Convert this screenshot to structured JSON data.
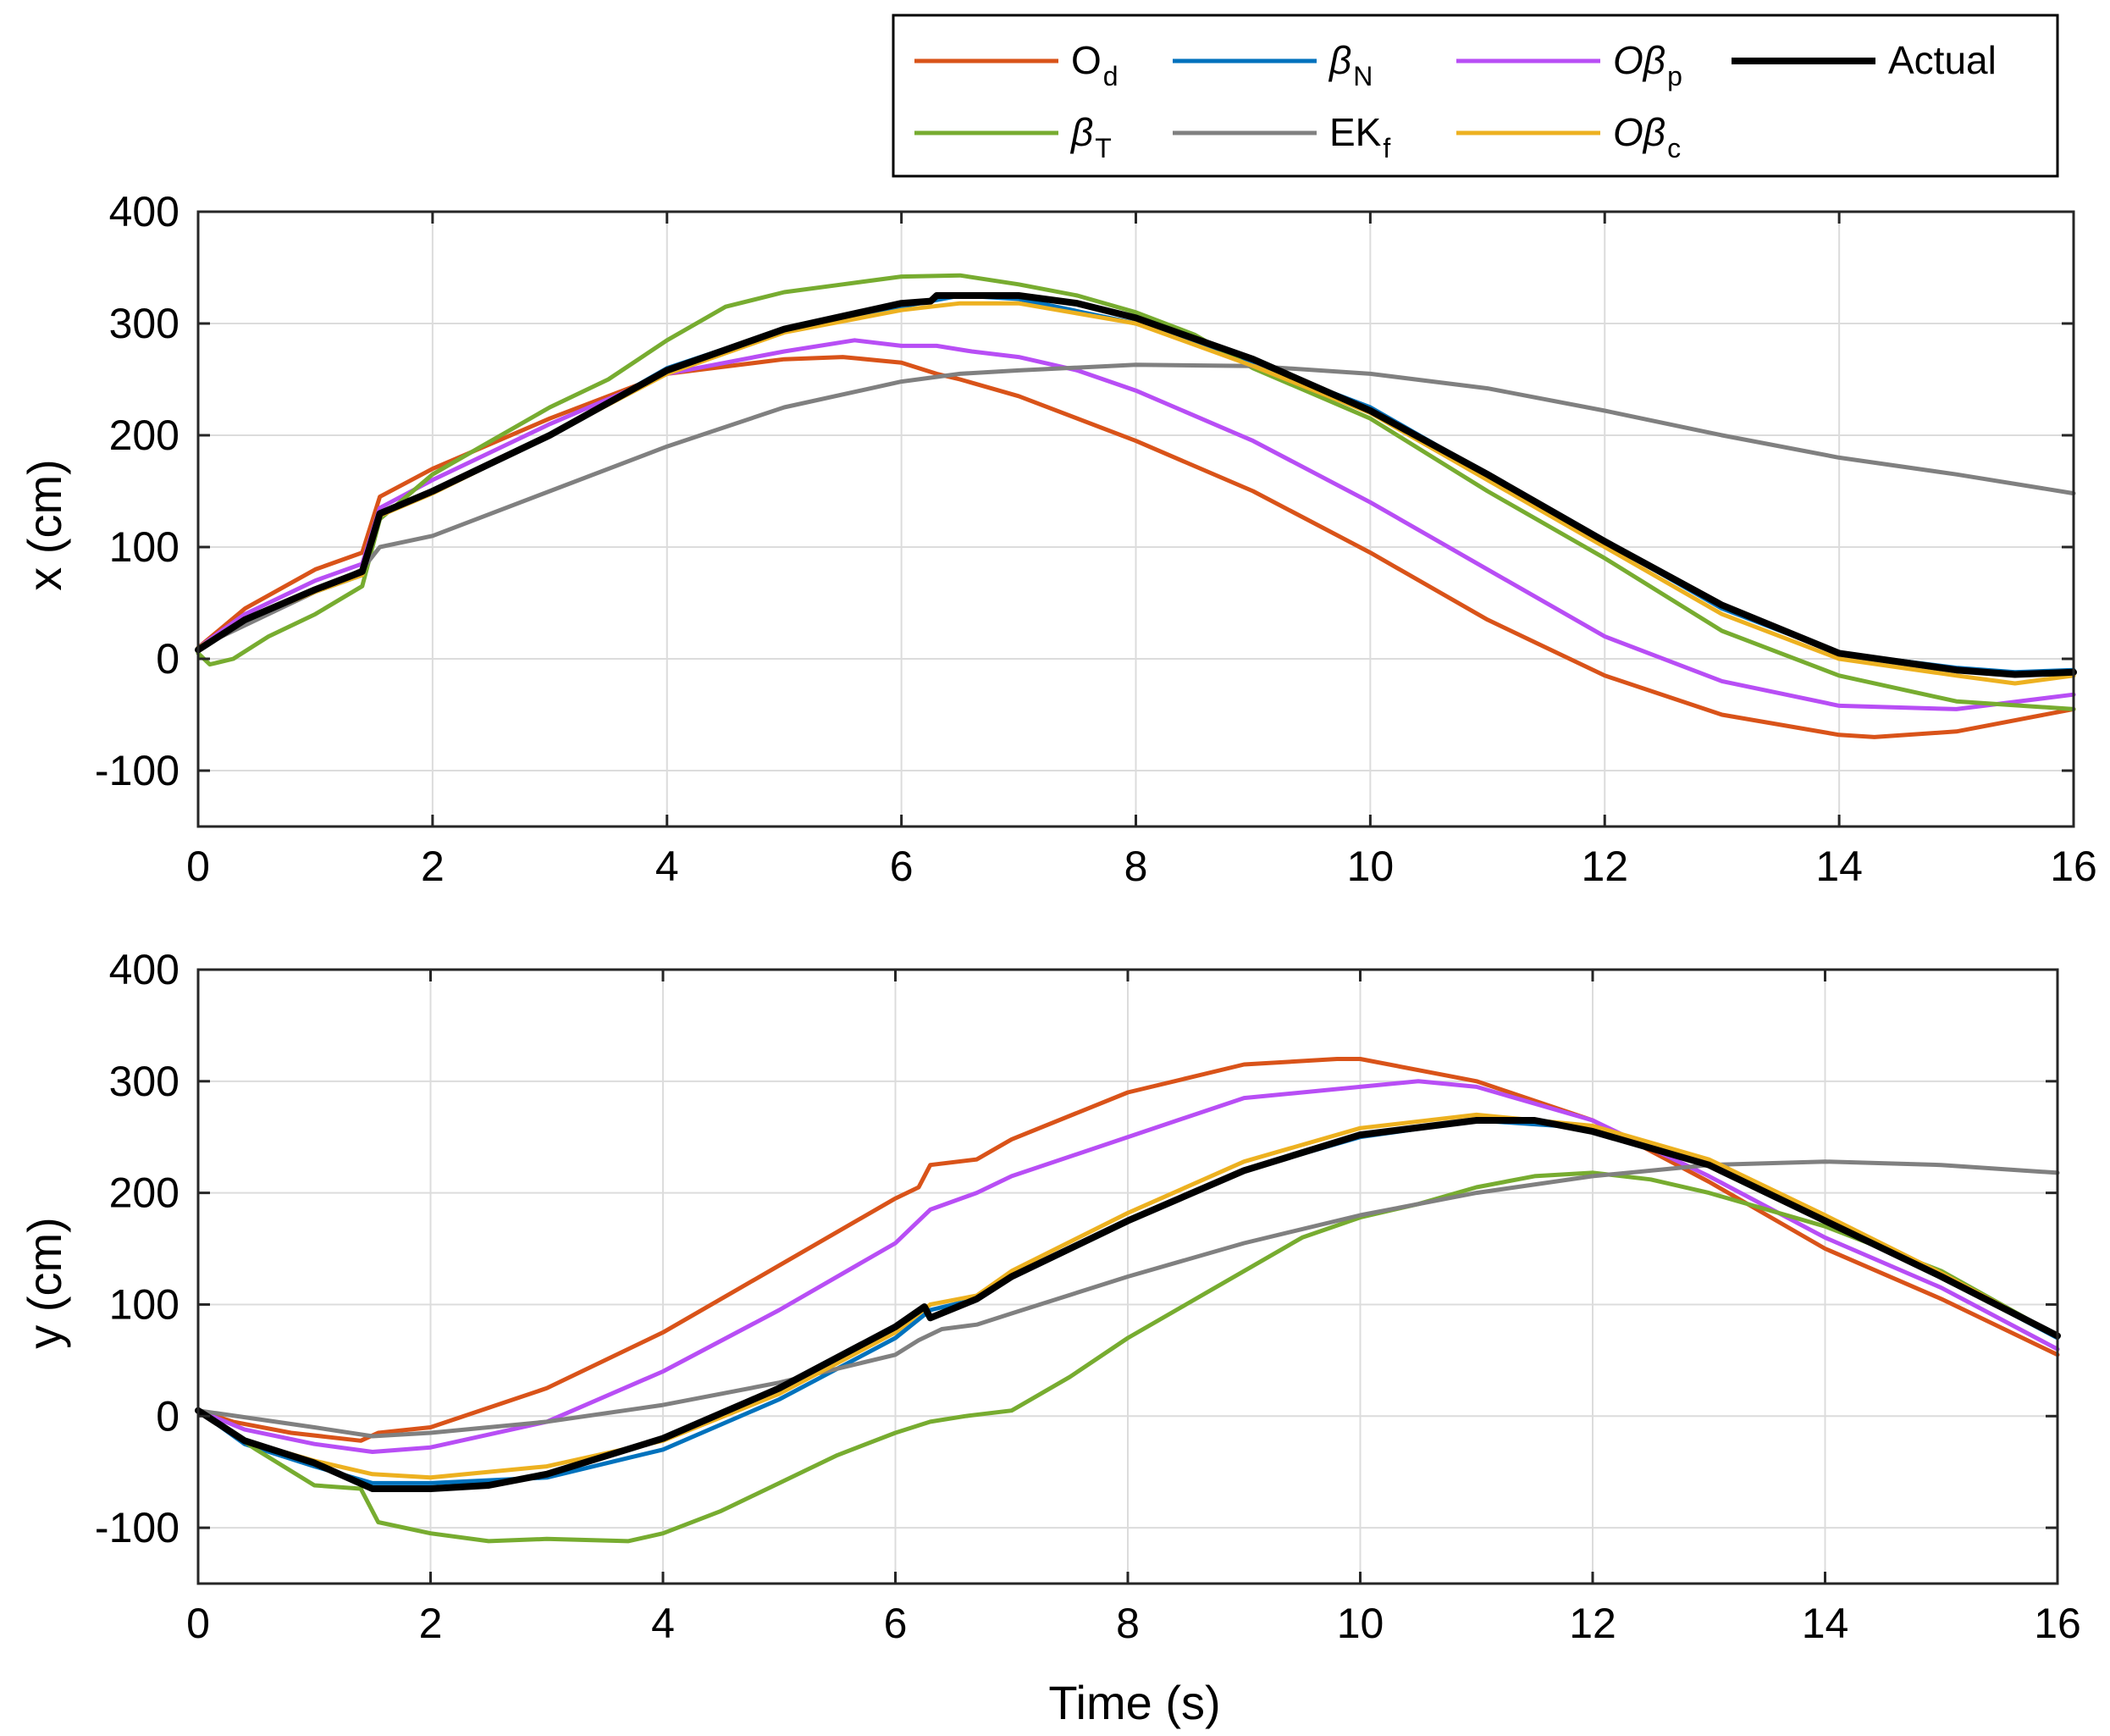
{
  "legend": {
    "entries": [
      {
        "id": "Od",
        "base": "O",
        "sub": "d",
        "color": "#D95319"
      },
      {
        "id": "betaN",
        "base": "β",
        "sub": "N",
        "color": "#0072BD"
      },
      {
        "id": "Obetap",
        "base": "Oβ",
        "sub": "p",
        "color": "#B84EF5"
      },
      {
        "id": "Actual",
        "base": "Actual",
        "sub": "",
        "color": "#000000"
      },
      {
        "id": "betaT",
        "base": "β",
        "sub": "T",
        "color": "#77AC30"
      },
      {
        "id": "EKf",
        "base": "EK",
        "sub": "f",
        "color": "#808080"
      },
      {
        "id": "Obetac",
        "base": "Oβ",
        "sub": "c",
        "color": "#EDB120"
      }
    ]
  },
  "chart_data": [
    {
      "type": "line",
      "title": "",
      "xlabel": "",
      "ylabel": "x (cm)",
      "xlim": [
        0,
        16
      ],
      "ylim": [
        -150,
        400
      ],
      "xticks": [
        0,
        2,
        4,
        6,
        8,
        10,
        12,
        14,
        16
      ],
      "yticks": [
        -100,
        0,
        100,
        200,
        300,
        400
      ],
      "grid": true,
      "legend_position": "top-right",
      "series": [
        {
          "name": "Od",
          "x": [
            0,
            0.4,
            1,
            1.4,
            1.55,
            2,
            3,
            4,
            5,
            5.5,
            6,
            6.3,
            6.5,
            7,
            8,
            9,
            10,
            11,
            12,
            13,
            14,
            14.3,
            15,
            16
          ],
          "y": [
            10,
            45,
            80,
            95,
            145,
            170,
            215,
            255,
            268,
            270,
            265,
            255,
            250,
            235,
            195,
            150,
            95,
            35,
            -15,
            -50,
            -68,
            -70,
            -65,
            -45
          ]
        },
        {
          "name": "betaN",
          "x": [
            0,
            0.4,
            1,
            1.4,
            1.55,
            2,
            3,
            4,
            5,
            6,
            6.5,
            7,
            8,
            9,
            10,
            11,
            12,
            13,
            14,
            15,
            15.5,
            16
          ],
          "y": [
            10,
            35,
            60,
            75,
            130,
            150,
            200,
            260,
            295,
            315,
            325,
            322,
            300,
            265,
            225,
            165,
            105,
            45,
            5,
            -8,
            -12,
            -10
          ]
        },
        {
          "name": "Obetap",
          "x": [
            0,
            0.4,
            1,
            1.4,
            1.55,
            2,
            3,
            4,
            5,
            5.6,
            6,
            6.3,
            6.6,
            7,
            7.5,
            8,
            9,
            10,
            11,
            12,
            13,
            14,
            15,
            16
          ],
          "y": [
            10,
            40,
            70,
            85,
            135,
            160,
            210,
            255,
            275,
            285,
            280,
            280,
            275,
            270,
            258,
            240,
            195,
            140,
            80,
            20,
            -20,
            -42,
            -45,
            -32
          ]
        },
        {
          "name": "betaT",
          "x": [
            0,
            0.1,
            0.3,
            0.6,
            1,
            1.4,
            1.55,
            2,
            2.5,
            3,
            3.5,
            4,
            4.5,
            5,
            5.5,
            6,
            6.5,
            7,
            7.5,
            8,
            8.5,
            9,
            10,
            11,
            12,
            13,
            14,
            15,
            16
          ],
          "y": [
            5,
            -5,
            0,
            20,
            40,
            65,
            125,
            165,
            195,
            225,
            250,
            285,
            315,
            328,
            335,
            342,
            343,
            335,
            325,
            310,
            290,
            260,
            215,
            150,
            90,
            25,
            -15,
            -38,
            -45
          ]
        },
        {
          "name": "EKf",
          "x": [
            0,
            1.4,
            1.55,
            2,
            3,
            4,
            5,
            6,
            6.5,
            7,
            8,
            9,
            10,
            11,
            12,
            13,
            14,
            15,
            16
          ],
          "y": [
            10,
            80,
            100,
            110,
            150,
            190,
            225,
            248,
            255,
            258,
            263,
            262,
            255,
            242,
            222,
            200,
            180,
            165,
            148
          ]
        },
        {
          "name": "Obetac",
          "x": [
            0,
            0.4,
            1,
            1.4,
            1.55,
            2,
            3,
            4,
            5,
            6,
            6.5,
            7,
            8,
            9,
            10,
            11,
            12,
            13,
            14,
            15,
            15.5,
            16
          ],
          "y": [
            10,
            35,
            60,
            75,
            128,
            148,
            200,
            255,
            292,
            312,
            318,
            318,
            300,
            262,
            220,
            160,
            100,
            40,
            0,
            -15,
            -22,
            -15
          ]
        },
        {
          "name": "Actual",
          "x": [
            0,
            0.4,
            1,
            1.4,
            1.55,
            2,
            3,
            4,
            5,
            6,
            6.25,
            6.3,
            7,
            7.5,
            8,
            9,
            10,
            11,
            12,
            13,
            14,
            15,
            15.5,
            16
          ],
          "y": [
            8,
            35,
            62,
            78,
            130,
            150,
            200,
            258,
            295,
            318,
            320,
            325,
            325,
            318,
            305,
            268,
            222,
            165,
            105,
            48,
            5,
            -10,
            -14,
            -12
          ]
        }
      ]
    },
    {
      "type": "line",
      "title": "",
      "xlabel": "Time (s)",
      "ylabel": "y (cm)",
      "xlim": [
        0,
        16
      ],
      "ylim": [
        -150,
        400
      ],
      "xticks": [
        0,
        2,
        4,
        6,
        8,
        10,
        12,
        14,
        16
      ],
      "yticks": [
        -100,
        0,
        100,
        200,
        300,
        400
      ],
      "grid": true,
      "series": [
        {
          "name": "Od",
          "x": [
            0,
            0.3,
            0.8,
            1.4,
            1.55,
            2,
            3,
            4,
            5,
            6,
            6.2,
            6.3,
            6.7,
            7,
            8,
            9,
            9.8,
            10,
            11,
            12,
            13,
            14,
            15,
            16
          ],
          "y": [
            5,
            -5,
            -15,
            -22,
            -15,
            -10,
            25,
            75,
            135,
            195,
            205,
            225,
            230,
            248,
            290,
            315,
            320,
            320,
            300,
            265,
            210,
            150,
            105,
            55
          ]
        },
        {
          "name": "betaN",
          "x": [
            0,
            0.4,
            1,
            1.5,
            2,
            3,
            4,
            5,
            6,
            6.3,
            6.7,
            7,
            8,
            9,
            10,
            11,
            12,
            13,
            14,
            15,
            16
          ],
          "y": [
            5,
            -25,
            -45,
            -60,
            -60,
            -55,
            -30,
            15,
            70,
            95,
            105,
            125,
            175,
            220,
            250,
            265,
            258,
            225,
            178,
            125,
            70
          ]
        },
        {
          "name": "Obetap",
          "x": [
            0,
            0.4,
            1,
            1.5,
            2,
            3,
            4,
            5,
            6,
            6.3,
            6.7,
            7,
            8,
            9,
            10,
            10.5,
            11,
            12,
            13,
            14,
            15,
            16
          ],
          "y": [
            5,
            -12,
            -25,
            -32,
            -28,
            -5,
            40,
            95,
            155,
            185,
            200,
            215,
            250,
            285,
            295,
            300,
            295,
            265,
            215,
            160,
            115,
            60
          ]
        },
        {
          "name": "betaT",
          "x": [
            0,
            0.5,
            1,
            1.4,
            1.55,
            2,
            2.5,
            3,
            3.7,
            4,
            4.5,
            5,
            5.5,
            6,
            6.3,
            6.6,
            7,
            7.5,
            8,
            8.5,
            9,
            9.5,
            10,
            10.5,
            11,
            11.5,
            12,
            12.5,
            13,
            13.5,
            14,
            15,
            16
          ],
          "y": [
            5,
            -30,
            -62,
            -65,
            -95,
            -105,
            -112,
            -110,
            -112,
            -105,
            -85,
            -60,
            -35,
            -15,
            -5,
            0,
            5,
            35,
            70,
            100,
            130,
            160,
            178,
            190,
            205,
            215,
            218,
            212,
            200,
            185,
            170,
            130,
            72
          ]
        },
        {
          "name": "EKf",
          "x": [
            0,
            1,
            1.5,
            2,
            3,
            4,
            5,
            6,
            6.2,
            6.4,
            6.7,
            7,
            8,
            9,
            10,
            11,
            12,
            13,
            14,
            15,
            16
          ],
          "y": [
            5,
            -10,
            -18,
            -15,
            -5,
            10,
            30,
            55,
            68,
            78,
            82,
            92,
            125,
            155,
            180,
            200,
            215,
            225,
            228,
            225,
            218
          ]
        },
        {
          "name": "Obetac",
          "x": [
            0,
            0.4,
            1,
            1.5,
            2,
            3,
            4,
            5,
            6,
            6.3,
            6.7,
            7,
            8,
            9,
            10,
            11,
            12,
            13,
            14,
            15,
            16
          ],
          "y": [
            5,
            -22,
            -40,
            -52,
            -55,
            -45,
            -22,
            20,
            75,
            100,
            108,
            130,
            182,
            228,
            258,
            270,
            260,
            230,
            180,
            128,
            72
          ]
        },
        {
          "name": "Actual",
          "x": [
            0,
            0.4,
            1,
            1.5,
            2,
            2.5,
            3,
            4,
            5,
            6,
            6.25,
            6.3,
            6.7,
            7,
            8,
            9,
            10,
            11,
            11.5,
            12,
            13,
            14,
            15,
            16
          ],
          "y": [
            5,
            -22,
            -42,
            -65,
            -65,
            -62,
            -52,
            -20,
            25,
            80,
            98,
            88,
            105,
            125,
            175,
            220,
            252,
            265,
            265,
            255,
            225,
            175,
            125,
            72
          ]
        }
      ]
    }
  ]
}
